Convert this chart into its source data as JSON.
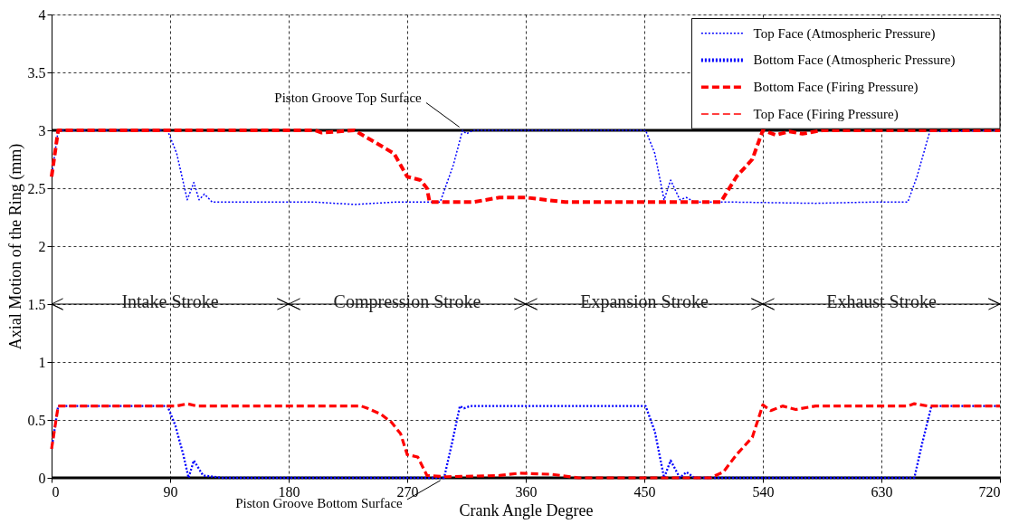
{
  "chart_data": {
    "type": "line",
    "xlabel": "Crank Angle Degree",
    "ylabel": "Axial Motion of the Ring (mm)",
    "xlim": [
      0,
      720
    ],
    "xticks": [
      0,
      90,
      180,
      270,
      360,
      450,
      540,
      630,
      720
    ],
    "ylim": [
      0,
      4
    ],
    "yticks": [
      0,
      0.5,
      1,
      1.5,
      2,
      2.5,
      3,
      3.5,
      4
    ],
    "grid": true,
    "legend": "top right",
    "marker": "none",
    "series": [
      {
        "name": "Top Face (Atmospheric Pressure)",
        "color": "#0000ff",
        "line_style": "dotted",
        "x": [
          0,
          5,
          88,
          95,
          103,
          108,
          112,
          116,
          122,
          150,
          200,
          230,
          260,
          295,
          305,
          312,
          315,
          320,
          451,
          458,
          465,
          470,
          477,
          482,
          488,
          520,
          580,
          620,
          650,
          657,
          667,
          672,
          720
        ],
        "values": [
          2.6,
          3,
          3,
          2.8,
          2.4,
          2.55,
          2.4,
          2.45,
          2.38,
          2.38,
          2.38,
          2.36,
          2.38,
          2.38,
          2.7,
          3,
          2.97,
          3,
          3,
          2.8,
          2.4,
          2.57,
          2.4,
          2.42,
          2.38,
          2.38,
          2.37,
          2.38,
          2.38,
          2.6,
          3,
          2.99,
          3
        ]
      },
      {
        "name": "Bottom Face (Atmospheric Pressure)",
        "color": "#0000ff",
        "line_style": "dotted",
        "x": [
          0,
          5,
          88,
          94,
          100,
          104,
          108,
          115,
          130,
          200,
          298,
          304,
          310,
          313,
          318,
          451,
          458,
          465,
          470,
          477,
          482,
          488,
          560,
          655,
          661,
          668,
          720
        ],
        "values": [
          0.25,
          0.62,
          0.62,
          0.45,
          0.2,
          0,
          0.15,
          0.02,
          0,
          0,
          0,
          0.3,
          0.62,
          0.6,
          0.62,
          0.62,
          0.4,
          0,
          0.15,
          0,
          0.05,
          0,
          0,
          0,
          0.3,
          0.62,
          0.62
        ]
      },
      {
        "name": "Bottom Face (Firing Pressure)",
        "color": "#ff0000",
        "line_style": "dashed",
        "x": [
          0,
          5,
          95,
          103,
          110,
          180,
          235,
          240,
          250,
          258,
          265,
          270,
          278,
          285,
          300,
          340,
          355,
          380,
          400,
          500,
          510,
          520,
          532,
          540,
          546,
          555,
          565,
          580,
          650,
          655,
          665,
          720
        ],
        "values": [
          0.25,
          0.62,
          0.62,
          0.64,
          0.62,
          0.62,
          0.62,
          0.6,
          0.55,
          0.48,
          0.38,
          0.2,
          0.18,
          0.02,
          0.01,
          0.02,
          0.04,
          0.03,
          0,
          0,
          0.05,
          0.2,
          0.35,
          0.63,
          0.58,
          0.62,
          0.59,
          0.62,
          0.62,
          0.64,
          0.62,
          0.62
        ]
      },
      {
        "name": "Top Face (Firing Pressure)",
        "color": "#ff0000",
        "line_style": "dashed",
        "x": [
          0,
          5,
          200,
          205,
          230,
          245,
          260,
          270,
          280,
          285,
          287,
          320,
          340,
          360,
          390,
          508,
          520,
          532,
          540,
          550,
          560,
          570,
          585,
          720
        ],
        "values": [
          2.6,
          3,
          3,
          2.98,
          3,
          2.9,
          2.8,
          2.6,
          2.57,
          2.5,
          2.38,
          2.38,
          2.42,
          2.42,
          2.38,
          2.38,
          2.6,
          2.75,
          3,
          2.96,
          2.99,
          2.97,
          3,
          3
        ]
      }
    ],
    "ref_lines": [
      {
        "axis": "y",
        "value": 3,
        "label": "Piston Groove Top Surface",
        "color": "#000000"
      },
      {
        "axis": "y",
        "value": 0,
        "label": "Piston Groove Bottom Surface",
        "color": "#000000"
      }
    ],
    "annotations": [
      "Intake Stroke",
      "Compression Stroke",
      "Expansion Stroke",
      "Exhaust Stroke"
    ]
  }
}
